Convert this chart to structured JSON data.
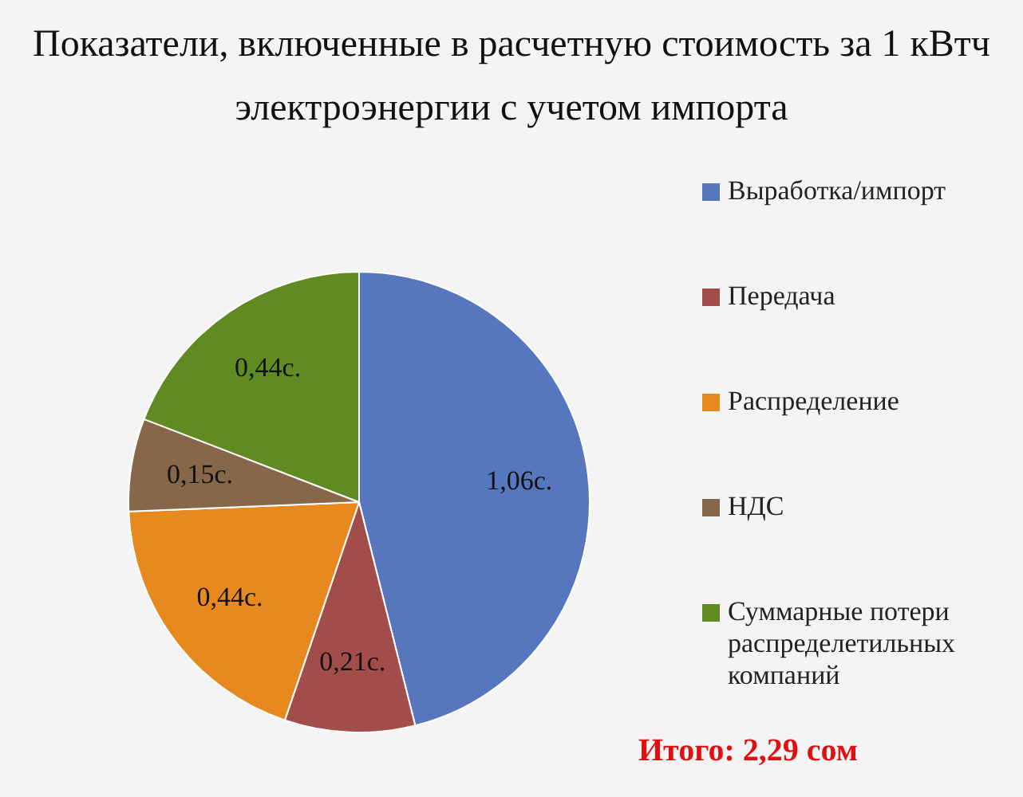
{
  "chart_data": {
    "type": "pie",
    "title": "Показатели, включенные в расчетную стоимость за 1 кВтч электроэнергии с учетом импорта",
    "categories": [
      "Выработка/импорт",
      "Передача",
      "Распределение",
      "НДС",
      "Суммарные потери распределетильных компаний"
    ],
    "values": [
      1.06,
      0.21,
      0.44,
      0.15,
      0.44
    ],
    "value_labels": [
      "1,06с.",
      "0,21с.",
      "0,44с.",
      "0,15с.",
      "0,44с."
    ],
    "colors": [
      "#5677bd",
      "#a24d4a",
      "#e8891f",
      "#86674a",
      "#5f8b22"
    ],
    "legend": "right",
    "annotations": [
      "Итого: 2,29 сом"
    ]
  }
}
